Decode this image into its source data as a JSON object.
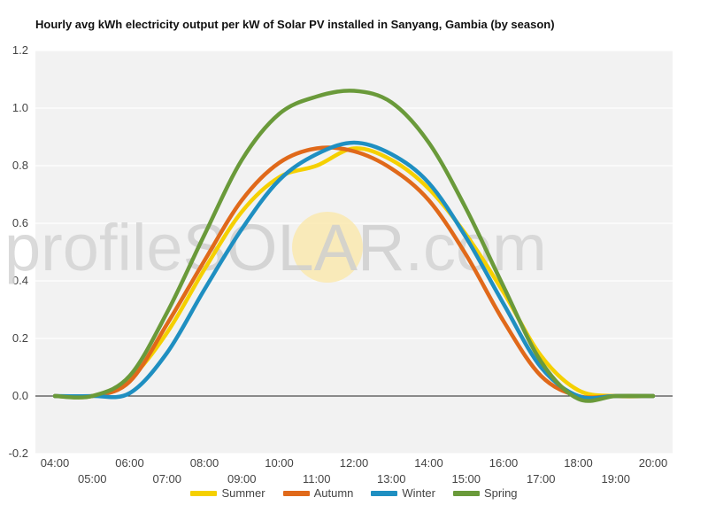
{
  "chart_data": {
    "type": "line",
    "title": "Hourly avg kWh electricity output per kW of Solar PV installed in Sanyang, Gambia (by season)",
    "watermark": "profileSOLAR.com",
    "xlabel": "",
    "ylabel": "",
    "ylim": [
      -0.2,
      1.2
    ],
    "yticks": [
      "-0.2",
      "0.0",
      "0.2",
      "0.4",
      "0.6",
      "0.8",
      "1.0",
      "1.2"
    ],
    "x": [
      "04:00",
      "05:00",
      "06:00",
      "07:00",
      "08:00",
      "09:00",
      "10:00",
      "11:00",
      "12:00",
      "13:00",
      "14:00",
      "15:00",
      "16:00",
      "17:00",
      "18:00",
      "19:00",
      "20:00"
    ],
    "grid": true,
    "legend_position": "bottom",
    "series": [
      {
        "name": "Summer",
        "color": "#f5d000",
        "values": [
          0,
          0,
          0.06,
          0.22,
          0.44,
          0.64,
          0.76,
          0.8,
          0.86,
          0.82,
          0.72,
          0.56,
          0.36,
          0.14,
          0.02,
          0,
          0
        ]
      },
      {
        "name": "Autumn",
        "color": "#e0691a",
        "values": [
          0,
          0,
          0.05,
          0.25,
          0.47,
          0.68,
          0.81,
          0.86,
          0.85,
          0.79,
          0.68,
          0.49,
          0.26,
          0.07,
          0,
          0,
          0
        ]
      },
      {
        "name": "Winter",
        "color": "#1f8fc1",
        "values": [
          0,
          0,
          0.01,
          0.15,
          0.37,
          0.58,
          0.75,
          0.84,
          0.88,
          0.84,
          0.74,
          0.55,
          0.32,
          0.1,
          0,
          0,
          0
        ]
      },
      {
        "name": "Spring",
        "color": "#6a9a3a",
        "values": [
          0,
          0,
          0.07,
          0.29,
          0.56,
          0.82,
          0.98,
          1.04,
          1.06,
          1.02,
          0.88,
          0.65,
          0.38,
          0.12,
          -0.01,
          0,
          0
        ]
      }
    ]
  }
}
